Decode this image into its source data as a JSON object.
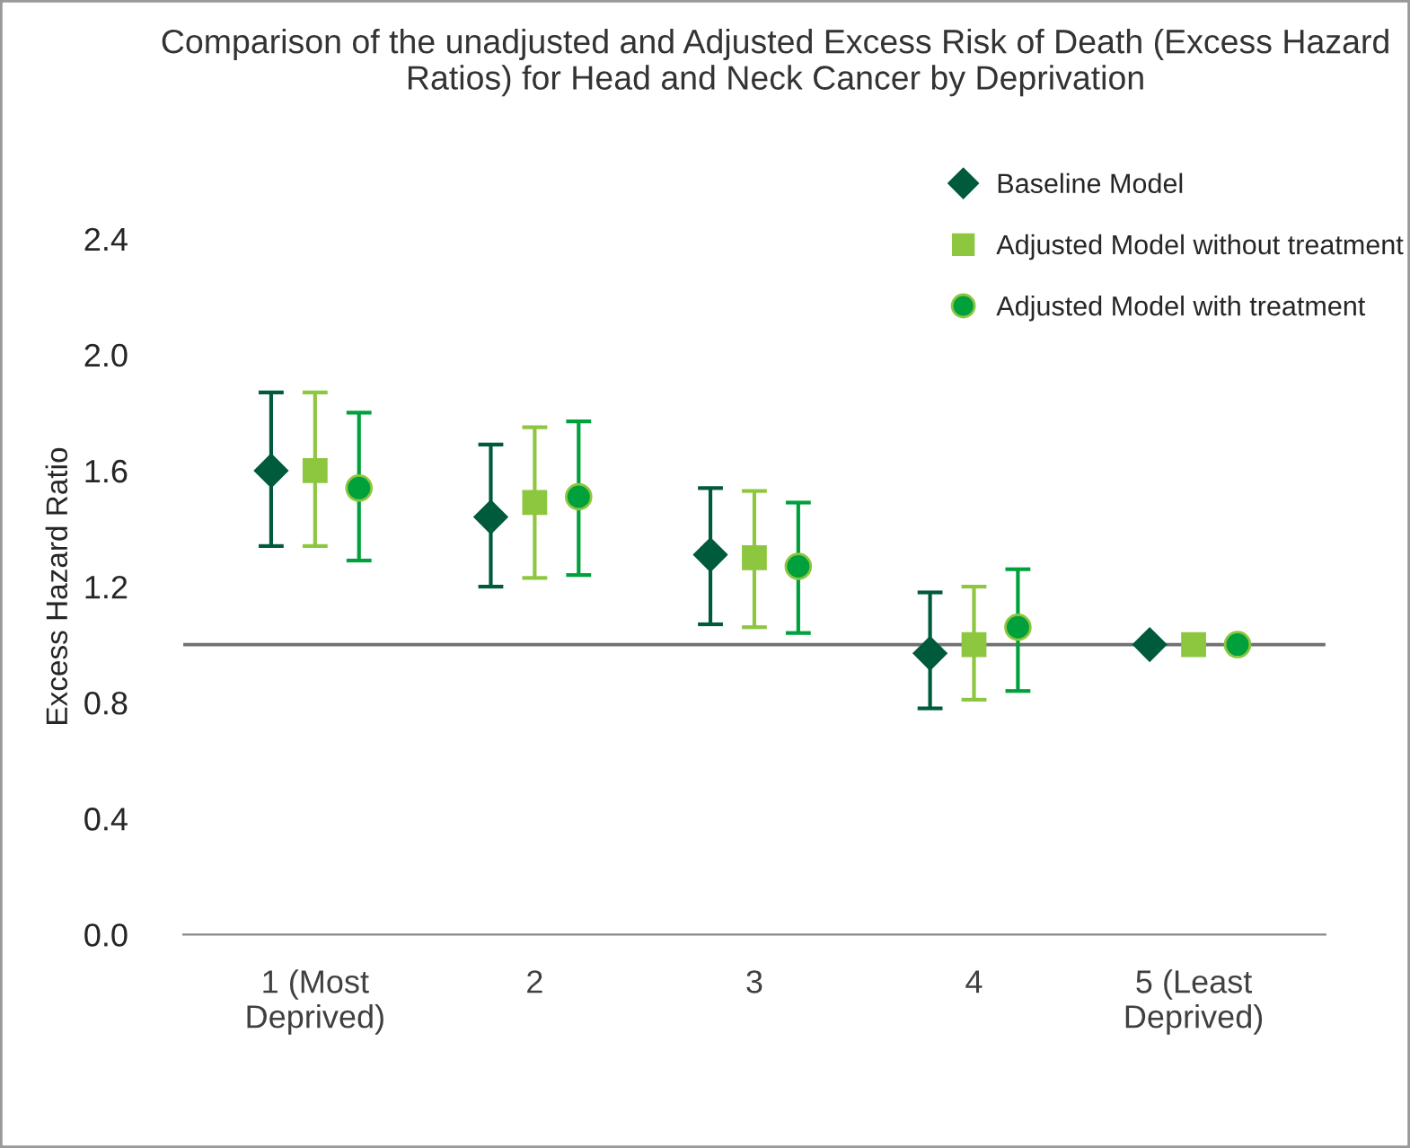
{
  "chart_data": {
    "type": "scatter",
    "title": "Comparison of the unadjusted and Adjusted Excess Risk of Death (Excess Hazard Ratios) for Head and Neck Cancer by Deprivation",
    "ylabel": "Excess Hazard Ratio",
    "categories": [
      "1 (Most\nDeprived)",
      "2",
      "3",
      "4",
      "5 (Least\nDeprived)"
    ],
    "series": [
      {
        "name": "Baseline Model",
        "color": "#005a3c",
        "marker": "diamond",
        "values": [
          1.6,
          1.44,
          1.31,
          0.97,
          1.0
        ],
        "errors": [
          [
            1.34,
            1.87
          ],
          [
            1.2,
            1.69
          ],
          [
            1.07,
            1.54
          ],
          [
            0.78,
            1.18
          ],
          null
        ]
      },
      {
        "name": "Adjusted Model without treatment",
        "color": "#8dc63f",
        "marker": "square",
        "values": [
          1.6,
          1.49,
          1.3,
          1.0,
          1.0
        ],
        "errors": [
          [
            1.34,
            1.87
          ],
          [
            1.23,
            1.75
          ],
          [
            1.06,
            1.53
          ],
          [
            0.81,
            1.2
          ],
          null
        ]
      },
      {
        "name": "Adjusted Model with treatment",
        "color": "#00a03c",
        "marker": "circle",
        "values": [
          1.54,
          1.51,
          1.27,
          1.06,
          1.0
        ],
        "errors": [
          [
            1.29,
            1.8
          ],
          [
            1.24,
            1.77
          ],
          [
            1.04,
            1.49
          ],
          [
            0.84,
            1.26
          ],
          null
        ]
      }
    ],
    "ylim": [
      0,
      2.4
    ],
    "yticks": [
      {
        "value": 0,
        "label": "0.0"
      },
      {
        "value": 0.4,
        "label": "0.4"
      },
      {
        "value": 0.8,
        "label": "0.8"
      },
      {
        "value": 1.2,
        "label": "1.2"
      },
      {
        "value": 1.6,
        "label": "1.6"
      },
      {
        "value": 2.0,
        "label": "2.0"
      },
      {
        "value": 2.4,
        "label": "2.4"
      }
    ],
    "ref_lines": [
      {
        "axis": "y",
        "value": 1.0,
        "color": "#707070"
      }
    ],
    "grid": false,
    "legend": "top right"
  }
}
